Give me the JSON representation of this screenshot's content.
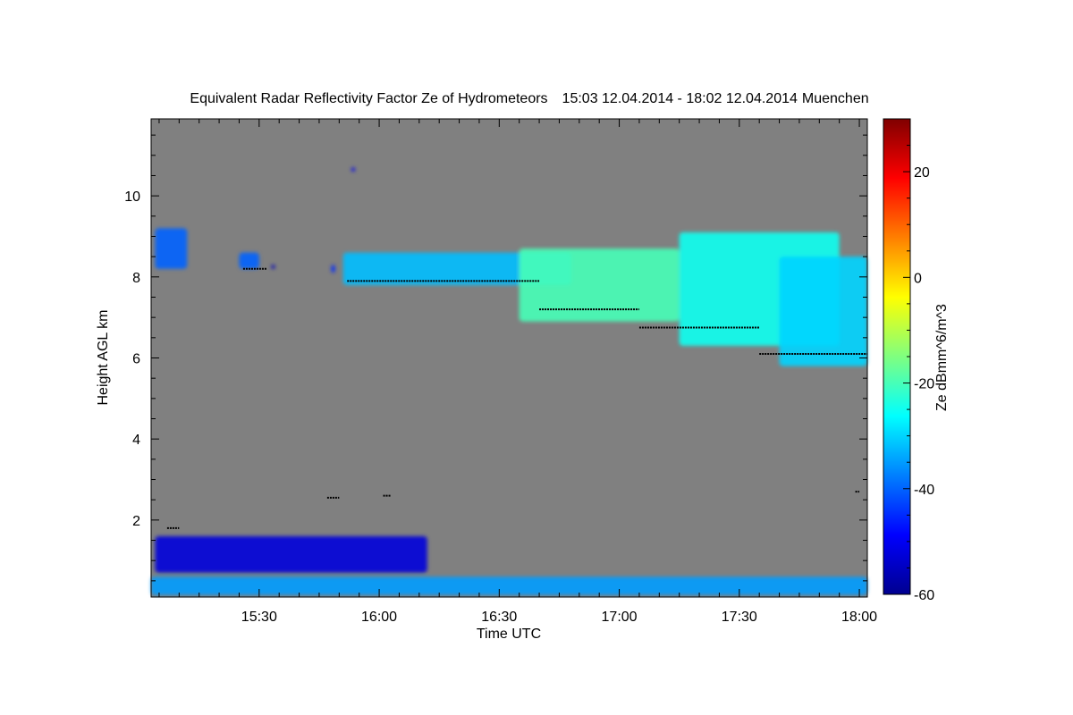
{
  "chart_data": {
    "type": "heatmap",
    "title": "Equivalent Radar Reflectivity Factor Ze of Hydrometeors",
    "period": "15:03 12.04.2014 - 18:02 12.04.2014",
    "location": "Muenchen",
    "xlabel": "Time UTC",
    "ylabel": "Height AGL km",
    "xlim": [
      "15:03",
      "18:02"
    ],
    "ylim": [
      0.1,
      11.9
    ],
    "x_ticks": [
      "15:30",
      "16:00",
      "16:30",
      "17:00",
      "17:30",
      "18:00"
    ],
    "y_ticks": [
      "2",
      "4",
      "6",
      "8",
      "10"
    ],
    "grid": false,
    "background_color": "#808080",
    "colorbar": {
      "label": "Ze dBmm^6/m^3",
      "range": [
        -60,
        30
      ],
      "ticks": [
        "20",
        "0",
        "-20",
        "-40",
        "-60"
      ],
      "colormap": "jet"
    },
    "echo_regions": [
      {
        "t_start": "15:04",
        "t_end": "15:12",
        "z_bottom": 8.2,
        "z_top": 9.2,
        "ze": -40
      },
      {
        "t_start": "15:25",
        "t_end": "15:30",
        "z_bottom": 8.2,
        "z_top": 8.6,
        "ze": -40
      },
      {
        "t_start": "15:33",
        "t_end": "15:34",
        "z_bottom": 8.2,
        "z_top": 8.3,
        "ze": -55
      },
      {
        "t_start": "15:48",
        "t_end": "15:49",
        "z_bottom": 8.1,
        "z_top": 8.3,
        "ze": -45
      },
      {
        "t_start": "15:53",
        "t_end": "15:54",
        "z_bottom": 10.6,
        "z_top": 10.7,
        "ze": -50
      },
      {
        "t_start": "15:51",
        "t_end": "16:48",
        "z_bottom": 7.8,
        "z_top": 8.6,
        "ze": -32
      },
      {
        "t_start": "16:35",
        "t_end": "17:15",
        "z_bottom": 6.9,
        "z_top": 8.7,
        "ze": -20
      },
      {
        "t_start": "17:15",
        "t_end": "17:55",
        "z_bottom": 6.3,
        "z_top": 9.1,
        "ze": -25
      },
      {
        "t_start": "17:40",
        "t_end": "18:02",
        "z_bottom": 5.8,
        "z_top": 8.5,
        "ze": -30
      },
      {
        "t_start": "15:04",
        "t_end": "16:12",
        "z_bottom": 0.7,
        "z_top": 1.6,
        "ze": -52
      },
      {
        "t_start": "15:03",
        "t_end": "18:02",
        "z_bottom": 0.15,
        "z_top": 0.6,
        "ze": -35
      }
    ],
    "cloud_base_markers": [
      {
        "t_start": "15:26",
        "t_end": "15:32",
        "z": 8.2
      },
      {
        "t_start": "15:52",
        "t_end": "16:40",
        "z": 7.9
      },
      {
        "t_start": "16:40",
        "t_end": "17:05",
        "z": 7.2
      },
      {
        "t_start": "17:05",
        "t_end": "17:35",
        "z": 6.75
      },
      {
        "t_start": "17:35",
        "t_end": "18:02",
        "z": 6.1
      },
      {
        "t_start": "15:47",
        "t_end": "15:50",
        "z": 2.55
      },
      {
        "t_start": "16:01",
        "t_end": "16:03",
        "z": 2.6
      },
      {
        "t_start": "15:07",
        "t_end": "15:10",
        "z": 1.8
      },
      {
        "t_start": "17:59",
        "t_end": "18:00",
        "z": 2.7
      }
    ]
  }
}
